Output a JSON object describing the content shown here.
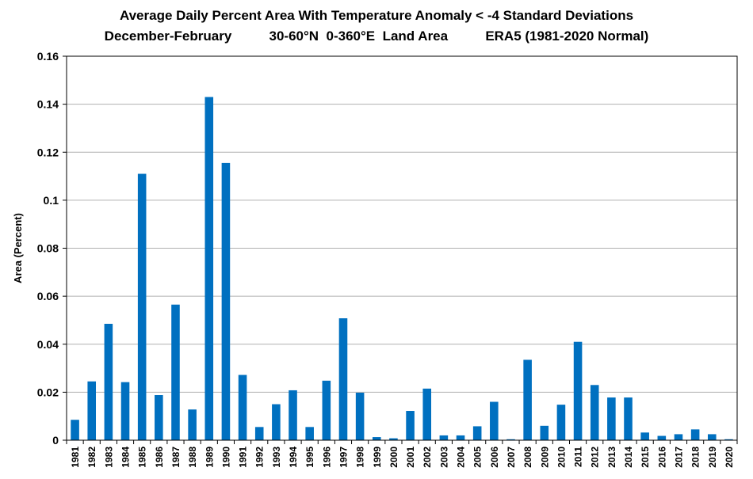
{
  "chart_data": {
    "type": "bar",
    "title_line1": "Average Daily Percent Area With Temperature Anomaly < -4 Standard Deviations",
    "title_line2": "December-February          30-60°N  0-360°E  Land Area          ERA5 (1981-2020 Normal)",
    "xlabel": "",
    "ylabel": "Area (Percent)",
    "ylim": [
      0,
      0.16
    ],
    "yticks": [
      "0",
      "0.02",
      "0.04",
      "0.06",
      "0.08",
      "0.1",
      "0.12",
      "0.14",
      "0.16"
    ],
    "ytick_values": [
      0,
      0.02,
      0.04,
      0.06,
      0.08,
      0.1,
      0.12,
      0.14,
      0.16
    ],
    "grid": true,
    "legend": "none",
    "bar_color": "#0070C0",
    "categories": [
      "1981",
      "1982",
      "1983",
      "1984",
      "1985",
      "1986",
      "1987",
      "1988",
      "1989",
      "1990",
      "1991",
      "1992",
      "1993",
      "1994",
      "1995",
      "1996",
      "1997",
      "1998",
      "1999",
      "2000",
      "2001",
      "2002",
      "2003",
      "2004",
      "2005",
      "2006",
      "2007",
      "2008",
      "2009",
      "2010",
      "2011",
      "2012",
      "2013",
      "2014",
      "2015",
      "2016",
      "2017",
      "2018",
      "2019",
      "2020"
    ],
    "values": [
      0.0085,
      0.0245,
      0.0485,
      0.0242,
      0.111,
      0.0188,
      0.0565,
      0.0128,
      0.143,
      0.1155,
      0.0272,
      0.0055,
      0.015,
      0.0208,
      0.0055,
      0.0248,
      0.0508,
      0.0198,
      0.0013,
      0.0008,
      0.0122,
      0.0215,
      0.002,
      0.002,
      0.0058,
      0.016,
      0.0004,
      0.0335,
      0.006,
      0.0148,
      0.041,
      0.023,
      0.0178,
      0.0178,
      0.0032,
      0.0018,
      0.0025,
      0.0045,
      0.0025,
      0.0004
    ]
  }
}
